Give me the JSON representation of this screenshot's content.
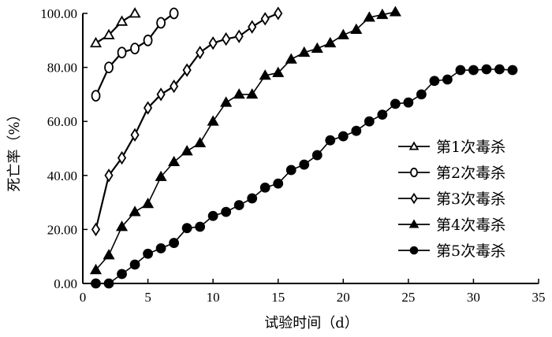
{
  "chart_data": {
    "type": "line",
    "title": "",
    "xlabel": "试验时间（d）",
    "ylabel": "死亡率（%）",
    "xlim": [
      0,
      35
    ],
    "ylim": [
      0,
      100
    ],
    "xticks": [
      "0",
      "5",
      "10",
      "15",
      "20",
      "25",
      "30",
      "35"
    ],
    "yticks": [
      "0.00",
      "20.00",
      "40.00",
      "60.00",
      "80.00",
      "100.00"
    ],
    "grid": false,
    "legend_position": "bottom-right",
    "series": [
      {
        "name": "第1次毒杀",
        "marker": "triangle-open",
        "x": [
          1,
          2,
          3,
          4
        ],
        "values": [
          89,
          92,
          97,
          100
        ]
      },
      {
        "name": "第2次毒杀",
        "marker": "circle-open",
        "x": [
          1,
          2,
          3,
          4,
          5,
          6,
          7
        ],
        "values": [
          69.5,
          80,
          85.5,
          87,
          90,
          96.5,
          100
        ]
      },
      {
        "name": "第3次毒杀",
        "marker": "diamond-open",
        "x": [
          1,
          2,
          3,
          4,
          5,
          6,
          7,
          8,
          9,
          10,
          11,
          12,
          13,
          14,
          15
        ],
        "values": [
          20,
          40,
          46.5,
          55,
          65,
          70,
          73,
          79,
          85.5,
          89,
          90.5,
          91.5,
          95,
          98,
          100
        ]
      },
      {
        "name": "第4次毒杀",
        "marker": "triangle-filled",
        "x": [
          1,
          2,
          3,
          4,
          5,
          6,
          7,
          8,
          9,
          10,
          11,
          12,
          13,
          14,
          15,
          16,
          17,
          18,
          19,
          20,
          21,
          22,
          23,
          24
        ],
        "values": [
          5,
          10.5,
          21,
          26.5,
          29.5,
          39.5,
          45,
          49,
          52,
          60,
          67,
          70,
          70,
          77,
          78,
          83,
          85.5,
          87,
          89,
          92,
          94,
          98.5,
          99.5,
          100.5
        ]
      },
      {
        "name": "第5次毒杀",
        "marker": "circle-filled",
        "x": [
          1,
          2,
          3,
          4,
          5,
          6,
          7,
          8,
          9,
          10,
          11,
          12,
          13,
          14,
          15,
          16,
          17,
          18,
          19,
          20,
          21,
          22,
          23,
          24,
          25,
          26,
          27,
          28,
          29,
          30,
          31,
          32,
          33
        ],
        "values": [
          0,
          0,
          3.5,
          7,
          11,
          13,
          15,
          20.5,
          21,
          25,
          26.5,
          29,
          31.5,
          35.5,
          37,
          42,
          44,
          47.5,
          53,
          54.5,
          56.5,
          60,
          62.5,
          66.5,
          67,
          70,
          75,
          75.5,
          79,
          79,
          79.3,
          79.3,
          79
        ]
      }
    ]
  }
}
